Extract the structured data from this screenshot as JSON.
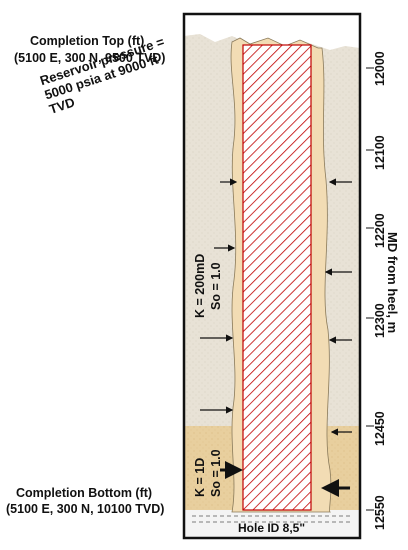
{
  "labels": {
    "completion_top": "Completion Top (ft)",
    "completion_top_coords": "(5100 E, 300 N, 9500 TVD)",
    "reservoir_line1": "Reservoir pressure =",
    "reservoir_line2": "5000 psia at 9000 ft",
    "reservoir_line3": "TVD",
    "upper_zone_k": "K = 200mD",
    "upper_zone_so": "So = 1.0",
    "lower_zone_k": "K = 1D",
    "lower_zone_so": "So = 1.0",
    "completion_bottom": "Completion Bottom (ft)",
    "completion_bottom_coords": "(5100 E, 300 N, 10100 TVD)",
    "hole_id": "Hole ID 8,5\"",
    "axis_title": "MD from heel, m"
  },
  "axis_ticks": [
    "12000",
    "12100",
    "12200",
    "12300",
    "12450",
    "12550"
  ],
  "colors": {
    "upper_rock": "#e8e2d6",
    "lower_rock": "#e8cf9e",
    "wellbore": "#f2dcb4",
    "hatch": "#c00000",
    "frame": "#111111"
  }
}
